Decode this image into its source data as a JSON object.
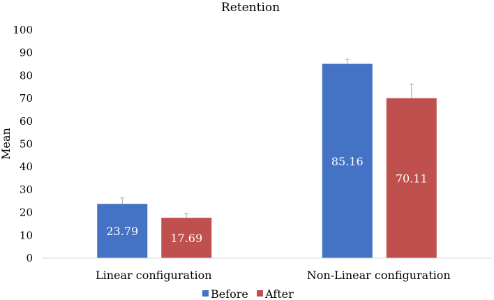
{
  "chart_data": {
    "type": "bar",
    "title": "Retention",
    "xlabel": "",
    "ylabel": "Mean",
    "ylim": [
      0,
      100
    ],
    "yticks": [
      0,
      10,
      20,
      30,
      40,
      50,
      60,
      70,
      80,
      90,
      100
    ],
    "categories": [
      "Linear configuration",
      "Non-Linear configuration"
    ],
    "series": [
      {
        "name": "Before",
        "color": "#4472C4",
        "values": [
          23.79,
          85.16
        ],
        "errors": [
          2.6,
          2.0
        ],
        "labels": [
          "23.79",
          "85.16"
        ]
      },
      {
        "name": "After",
        "color": "#C0504D",
        "values": [
          17.69,
          70.11
        ],
        "errors": [
          2.0,
          6.2
        ],
        "labels": [
          "17.69",
          "70.11"
        ]
      }
    ],
    "legend": "bottom",
    "grid": false
  }
}
